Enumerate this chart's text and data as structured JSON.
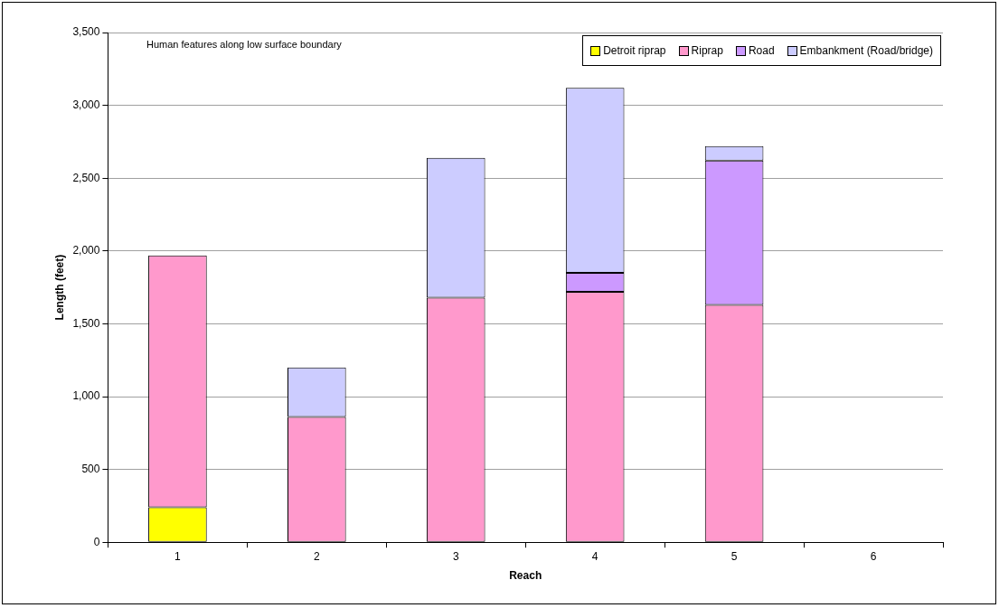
{
  "chart_data": {
    "type": "bar",
    "stacked": true,
    "title": "Human features along low surface boundary",
    "xlabel": "Reach",
    "ylabel": "Length (feet)",
    "categories": [
      "1",
      "2",
      "3",
      "4",
      "5",
      "6"
    ],
    "series": [
      {
        "name": "Detroit riprap",
        "color": "#ffff00",
        "values": [
          240,
          null,
          null,
          null,
          null,
          null
        ]
      },
      {
        "name": "Riprap",
        "color": "#ff99cc",
        "values": [
          1730,
          860,
          1680,
          1720,
          1630,
          null
        ]
      },
      {
        "name": "Road",
        "color": "#cc99ff",
        "values": [
          null,
          null,
          null,
          130,
          990,
          null
        ]
      },
      {
        "name": "Embankment (Road/bridge)",
        "color": "#ccccff",
        "values": [
          null,
          340,
          960,
          1270,
          100,
          null
        ]
      }
    ],
    "ylim": [
      0,
      3500
    ],
    "yticks": [
      0,
      500,
      {
        "value": 1000,
        "label": "1,000"
      },
      {
        "value": 1500,
        "label": "1,500"
      },
      {
        "value": 2000,
        "label": "2,000"
      },
      {
        "value": 2500,
        "label": "2,500"
      },
      {
        "value": 3000,
        "label": "3,000"
      },
      {
        "value": 3500,
        "label": "3,500"
      }
    ],
    "grid": "y",
    "legend": "top right"
  }
}
